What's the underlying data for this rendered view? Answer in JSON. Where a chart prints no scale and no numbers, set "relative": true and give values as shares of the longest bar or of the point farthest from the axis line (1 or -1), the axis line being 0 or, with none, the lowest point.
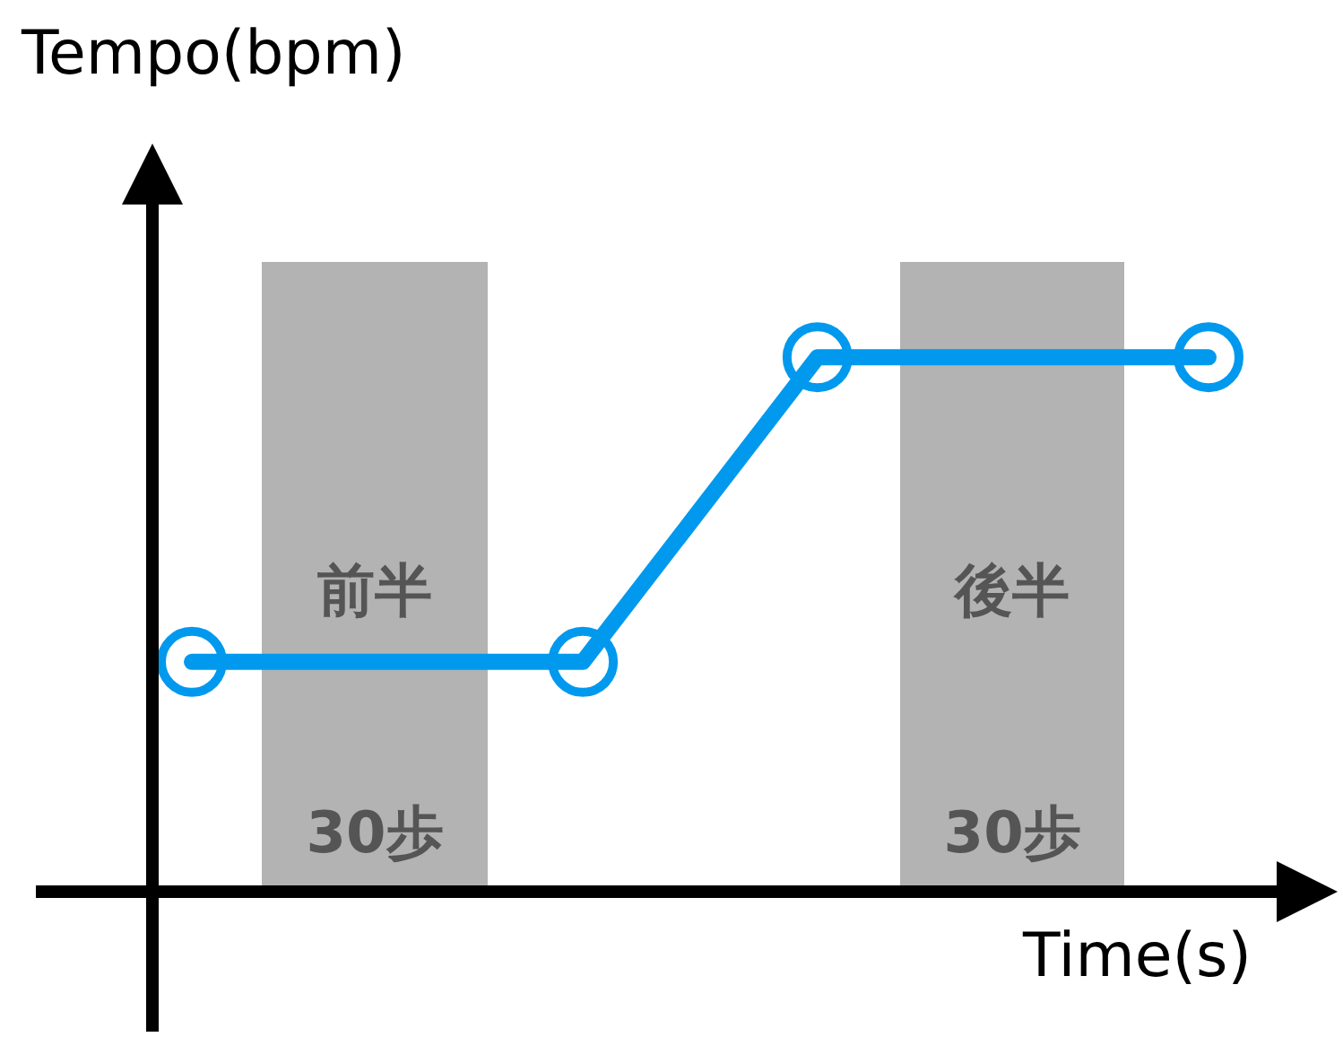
{
  "chart_data": {
    "type": "line",
    "relative": true,
    "xlabel": "Time(s)",
    "ylabel": "Tempo(bpm)",
    "categories": [
      null,
      null,
      null,
      null,
      null,
      null,
      null,
      null,
      null,
      null,
      null,
      null,
      null,
      null
    ],
    "series": [
      {
        "color": "#0099ee",
        "values": [
          0.43,
          null,
          null,
          null,
          null,
          0.43,
          null,
          null,
          1,
          null,
          null,
          null,
          null,
          1
        ]
      }
    ],
    "marker": "circle",
    "line_style": "solid",
    "annotations": [
      "前半",
      "30歩",
      "後半",
      "30歩"
    ]
  }
}
